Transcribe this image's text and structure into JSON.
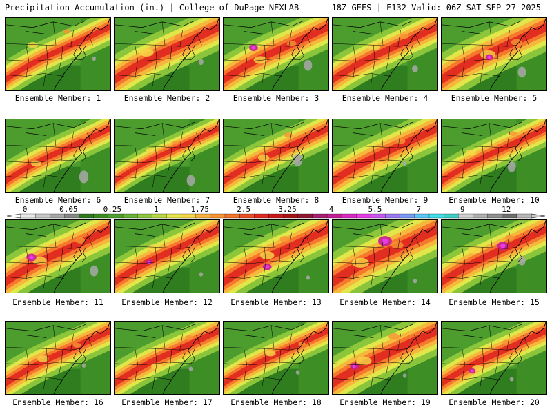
{
  "header": {
    "left": "Precipitation Accumulation (in.) | College of DuPage NEXLAB",
    "right": "18Z GEFS | F132 Valid: 06Z SAT SEP 27 2025"
  },
  "members": [
    {
      "label": "Ensemble Member: 1",
      "intensity": 0.55,
      "pink": 0.0,
      "gray": 0.1
    },
    {
      "label": "Ensemble Member: 2",
      "intensity": 0.75,
      "pink": 0.0,
      "gray": 0.2
    },
    {
      "label": "Ensemble Member: 3",
      "intensity": 0.7,
      "pink": 0.5,
      "gray": 0.5
    },
    {
      "label": "Ensemble Member: 4",
      "intensity": 0.65,
      "pink": 0.0,
      "gray": 0.3
    },
    {
      "label": "Ensemble Member: 5",
      "intensity": 0.8,
      "pink": 0.4,
      "gray": 0.5
    },
    {
      "label": "Ensemble Member: 6",
      "intensity": 0.55,
      "pink": 0.0,
      "gray": 0.6
    },
    {
      "label": "Ensemble Member: 7",
      "intensity": 0.45,
      "pink": 0.0,
      "gray": 0.5
    },
    {
      "label": "Ensemble Member: 8",
      "intensity": 0.6,
      "pink": 0.0,
      "gray": 0.6
    },
    {
      "label": "Ensemble Member: 9",
      "intensity": 0.7,
      "pink": 0.0,
      "gray": 0.1
    },
    {
      "label": "Ensemble Member: 10",
      "intensity": 0.55,
      "pink": 0.0,
      "gray": 0.5
    },
    {
      "label": "Ensemble Member: 11",
      "intensity": 0.75,
      "pink": 0.6,
      "gray": 0.5
    },
    {
      "label": "Ensemble Member: 12",
      "intensity": 0.65,
      "pink": 0.3,
      "gray": 0.1
    },
    {
      "label": "Ensemble Member: 13",
      "intensity": 0.75,
      "pink": 0.5,
      "gray": 0.1
    },
    {
      "label": "Ensemble Member: 14",
      "intensity": 0.9,
      "pink": 0.9,
      "gray": 0.1
    },
    {
      "label": "Ensemble Member: 15",
      "intensity": 0.7,
      "pink": 0.7,
      "gray": 0.4
    },
    {
      "label": "Ensemble Member: 16",
      "intensity": 0.6,
      "pink": 0.0,
      "gray": 0.1
    },
    {
      "label": "Ensemble Member: 17",
      "intensity": 0.6,
      "pink": 0.0,
      "gray": 0.1
    },
    {
      "label": "Ensemble Member: 18",
      "intensity": 0.55,
      "pink": 0.0,
      "gray": 0.1
    },
    {
      "label": "Ensemble Member: 19",
      "intensity": 0.8,
      "pink": 0.5,
      "gray": 0.1
    },
    {
      "label": "Ensemble Member: 20",
      "intensity": 0.6,
      "pink": 0.3,
      "gray": 0.1
    }
  ],
  "colorbar": {
    "labels": [
      "0",
      "0.05",
      "0.25",
      "1",
      "1.75",
      "2.5",
      "3.25",
      "4",
      "5.5",
      "7",
      "9",
      "12"
    ],
    "colors": [
      "#e8e8e8",
      "#c8c8c8",
      "#a8a8a8",
      "#888888",
      "#2e7a1e",
      "#3c8c24",
      "#4ea02e",
      "#68b436",
      "#8ec83c",
      "#b8d844",
      "#e6e84a",
      "#f6d846",
      "#f8b43c",
      "#f89434",
      "#f4742c",
      "#ec4e26",
      "#e02a20",
      "#c81818",
      "#a81414",
      "#901830",
      "#a81e70",
      "#c41e96",
      "#dc28c4",
      "#e83ce8",
      "#c85af0",
      "#9a7af4",
      "#7a9af8",
      "#5ac8f8",
      "#42e0e8",
      "#3cd0c8",
      "#d0d0d0",
      "#b0b0b0",
      "#909090",
      "#707070",
      "#b8b8b8"
    ]
  }
}
